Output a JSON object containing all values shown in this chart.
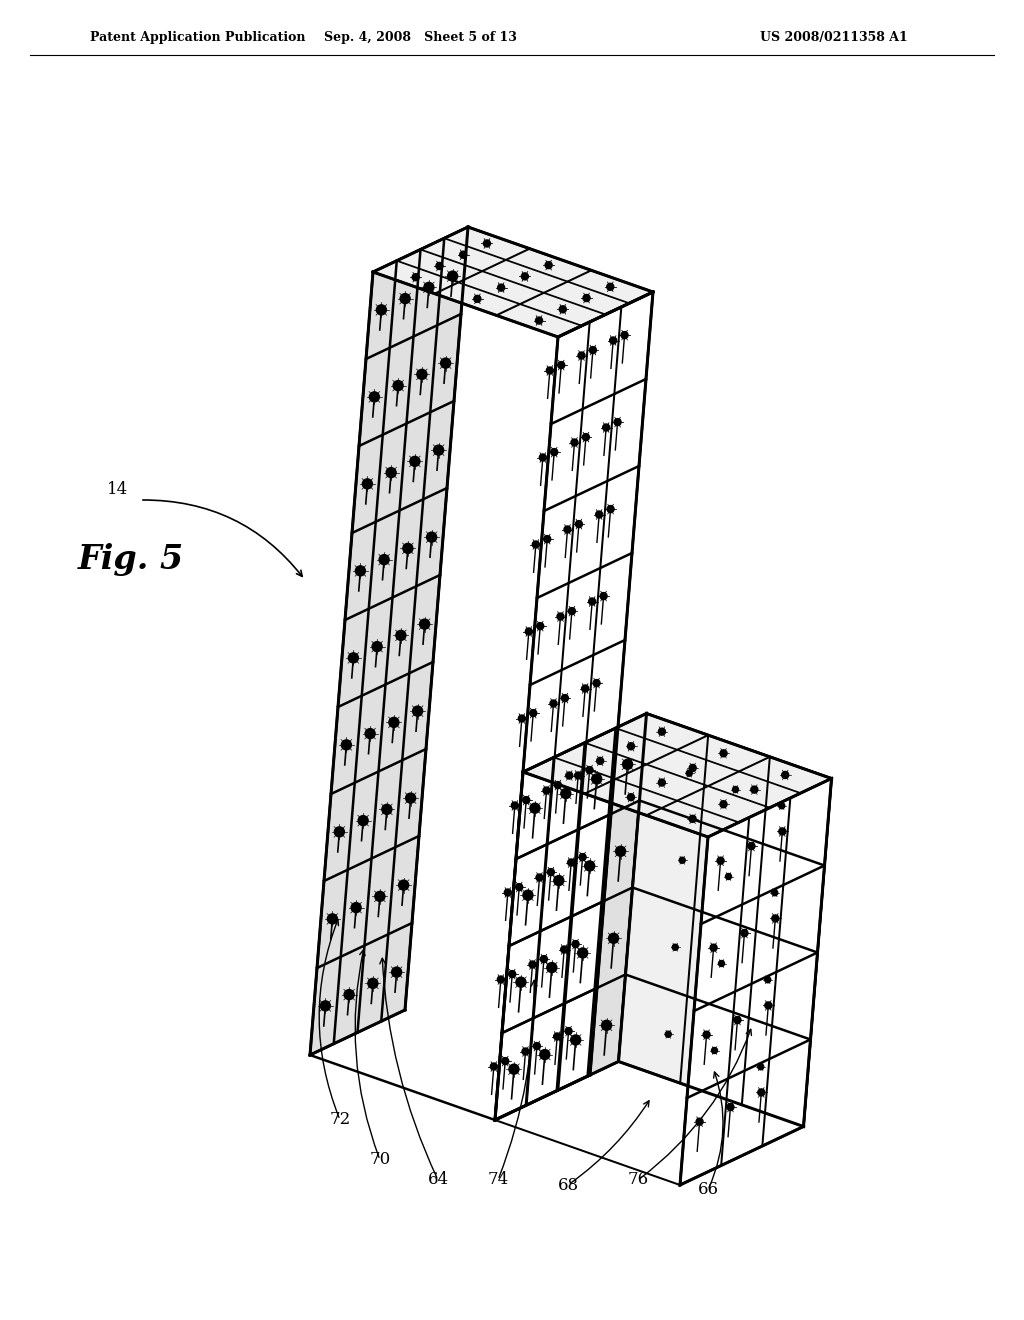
{
  "background_color": "#ffffff",
  "header_left": "Patent Application Publication",
  "header_center": "Sep. 4, 2008   Sheet 5 of 13",
  "header_right": "US 2008/0211358 A1",
  "figure_label": "Fig. 5",
  "line_color": "#000000",
  "face_white": "#ffffff",
  "face_light": "#f0f0f0",
  "face_mid": "#e0e0e0",
  "face_dark": "#c8c8c8"
}
